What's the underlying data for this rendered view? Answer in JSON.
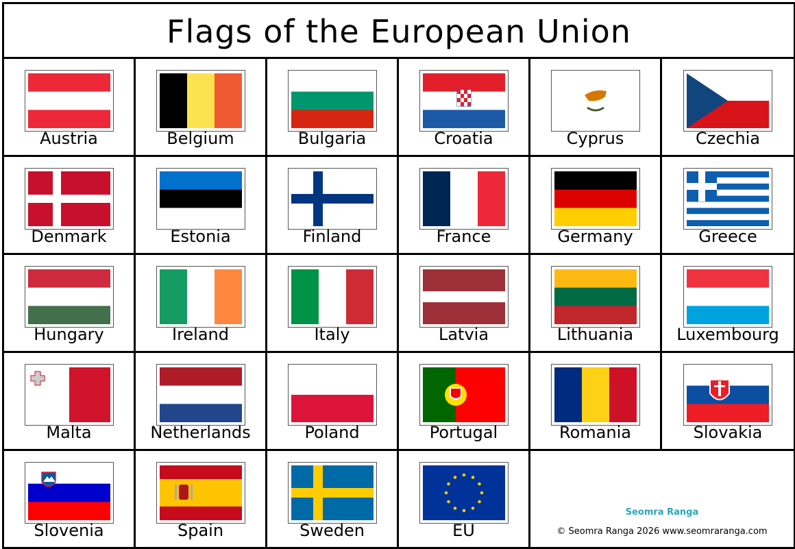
{
  "title": "Flags of the European Union",
  "flags": [
    {
      "name": "Austria"
    },
    {
      "name": "Belgium"
    },
    {
      "name": "Bulgaria"
    },
    {
      "name": "Croatia"
    },
    {
      "name": "Cyprus"
    },
    {
      "name": "Czechia"
    },
    {
      "name": "Denmark"
    },
    {
      "name": "Estonia"
    },
    {
      "name": "Finland"
    },
    {
      "name": "France"
    },
    {
      "name": "Germany"
    },
    {
      "name": "Greece"
    },
    {
      "name": "Hungary"
    },
    {
      "name": "Ireland"
    },
    {
      "name": "Italy"
    },
    {
      "name": "Latvia"
    },
    {
      "name": "Lithuania"
    },
    {
      "name": "Luxembourg"
    },
    {
      "name": "Malta"
    },
    {
      "name": "Netherlands"
    },
    {
      "name": "Poland"
    },
    {
      "name": "Portugal"
    },
    {
      "name": "Romania"
    },
    {
      "name": "Slovakia"
    },
    {
      "name": "Slovenia"
    },
    {
      "name": "Spain"
    },
    {
      "name": "Sweden"
    },
    {
      "name": "EU"
    }
  ],
  "credit": {
    "brand": "Seomra Ranga",
    "copyright": "© Seomra Ranga 2026 www.seomraranga.com"
  }
}
